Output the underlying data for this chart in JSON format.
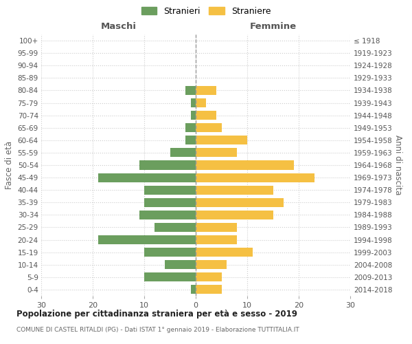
{
  "age_groups": [
    "0-4",
    "5-9",
    "10-14",
    "15-19",
    "20-24",
    "25-29",
    "30-34",
    "35-39",
    "40-44",
    "45-49",
    "50-54",
    "55-59",
    "60-64",
    "65-69",
    "70-74",
    "75-79",
    "80-84",
    "85-89",
    "90-94",
    "95-99",
    "100+"
  ],
  "birth_years": [
    "2014-2018",
    "2009-2013",
    "2004-2008",
    "1999-2003",
    "1994-1998",
    "1989-1993",
    "1984-1988",
    "1979-1983",
    "1974-1978",
    "1969-1973",
    "1964-1968",
    "1959-1963",
    "1954-1958",
    "1949-1953",
    "1944-1948",
    "1939-1943",
    "1934-1938",
    "1929-1933",
    "1924-1928",
    "1919-1923",
    "≤ 1918"
  ],
  "males": [
    1,
    10,
    6,
    10,
    19,
    8,
    11,
    10,
    10,
    19,
    11,
    5,
    2,
    2,
    1,
    1,
    2,
    0,
    0,
    0,
    0
  ],
  "females": [
    5,
    5,
    6,
    11,
    8,
    8,
    15,
    17,
    15,
    23,
    19,
    8,
    10,
    5,
    4,
    2,
    4,
    0,
    0,
    0,
    0
  ],
  "male_color": "#6b9e5e",
  "female_color": "#f5c043",
  "grid_color": "#cccccc",
  "center_line_color": "#999999",
  "title": "Popolazione per cittadinanza straniera per età e sesso - 2019",
  "subtitle": "COMUNE DI CASTEL RITALDI (PG) - Dati ISTAT 1° gennaio 2019 - Elaborazione TUTTITALIA.IT",
  "ylabel_left": "Fasce di età",
  "ylabel_right": "Anni di nascita",
  "xlabel_left": "Maschi",
  "xlabel_right": "Femmine",
  "legend_male": "Stranieri",
  "legend_female": "Straniere",
  "xlim": 30
}
